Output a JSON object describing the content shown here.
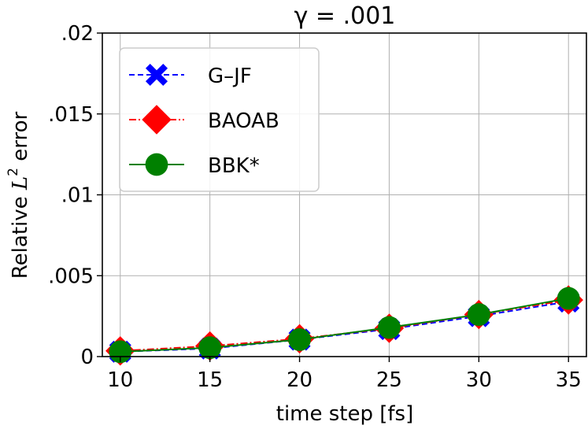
{
  "chart_data": {
    "type": "line",
    "title": "γ = .001",
    "xlabel": "time step [fs]",
    "ylabel_prefix": "Relative ",
    "ylabel_math": "L",
    "ylabel_sup": "2",
    "ylabel_suffix": " error",
    "x": [
      10,
      15,
      20,
      25,
      30,
      35
    ],
    "xlim": [
      9,
      36
    ],
    "ylim": [
      0,
      0.02
    ],
    "xticks": [
      10,
      15,
      20,
      25,
      30,
      35
    ],
    "xtick_labels": [
      "10",
      "15",
      "20",
      "25",
      "30",
      "35"
    ],
    "yticks": [
      0,
      0.005,
      0.01,
      0.015,
      0.02
    ],
    "ytick_labels": [
      "0",
      ".005",
      ".01",
      ".015",
      ".02"
    ],
    "grid": true,
    "legend_position": "top-left",
    "series": [
      {
        "name": "G–JF",
        "color": "#0000ff",
        "marker": "x-filled",
        "line": "dashed",
        "values": [
          0.0003,
          0.0005,
          0.00105,
          0.0017,
          0.0025,
          0.0034
        ]
      },
      {
        "name": "BAOAB",
        "color": "#ff0000",
        "marker": "diamond",
        "line": "dashdot",
        "values": [
          0.00035,
          0.00065,
          0.0011,
          0.00175,
          0.0026,
          0.0035
        ]
      },
      {
        "name": "BBK*",
        "color": "#008000",
        "marker": "circle",
        "line": "solid",
        "values": [
          0.0003,
          0.00055,
          0.00105,
          0.0018,
          0.0026,
          0.0036
        ]
      }
    ]
  }
}
